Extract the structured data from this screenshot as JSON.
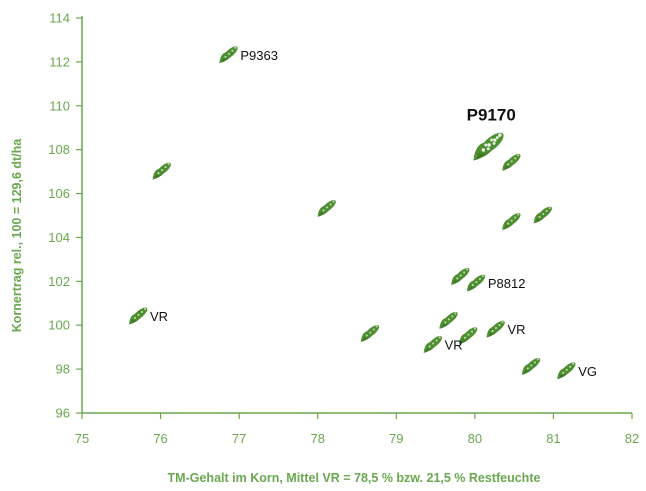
{
  "chart_data": {
    "type": "scatter",
    "title": "",
    "xlabel": "TM-Gehalt im Korn, Mittel VR = 78,5 % bzw. 21,5 % Restfeuchte",
    "ylabel": "Kornertrag rel., 100 = 129,6 dt/ha",
    "xlim": [
      75,
      82
    ],
    "ylim": [
      96,
      114
    ],
    "x_ticks": [
      "75",
      "76",
      "77",
      "78",
      "79",
      "80",
      "81",
      "82"
    ],
    "y_ticks": [
      "96",
      "98",
      "100",
      "102",
      "104",
      "106",
      "108",
      "110",
      "112",
      "114"
    ],
    "grid": false,
    "marker": "corn-cob-icon",
    "marker_color": "#4e8f2f",
    "axis_color": "#6aa84f",
    "points": [
      {
        "x": 76.85,
        "y": 112.3,
        "label": "P9363"
      },
      {
        "x": 80.15,
        "y": 108.1,
        "label": "P9170",
        "highlight": true
      },
      {
        "x": 76.0,
        "y": 107.0,
        "label": ""
      },
      {
        "x": 80.45,
        "y": 107.4,
        "label": ""
      },
      {
        "x": 78.1,
        "y": 105.3,
        "label": ""
      },
      {
        "x": 80.45,
        "y": 104.7,
        "label": ""
      },
      {
        "x": 80.85,
        "y": 105.0,
        "label": ""
      },
      {
        "x": 79.8,
        "y": 102.2,
        "label": ""
      },
      {
        "x": 80.0,
        "y": 101.9,
        "label": "P8812"
      },
      {
        "x": 75.7,
        "y": 100.4,
        "label": "VR"
      },
      {
        "x": 78.65,
        "y": 99.6,
        "label": ""
      },
      {
        "x": 79.65,
        "y": 100.2,
        "label": ""
      },
      {
        "x": 79.9,
        "y": 99.5,
        "label": ""
      },
      {
        "x": 80.25,
        "y": 99.8,
        "label": "VR"
      },
      {
        "x": 79.45,
        "y": 99.1,
        "label": "VR"
      },
      {
        "x": 80.7,
        "y": 98.1,
        "label": ""
      },
      {
        "x": 81.15,
        "y": 97.9,
        "label": "VG"
      }
    ]
  }
}
